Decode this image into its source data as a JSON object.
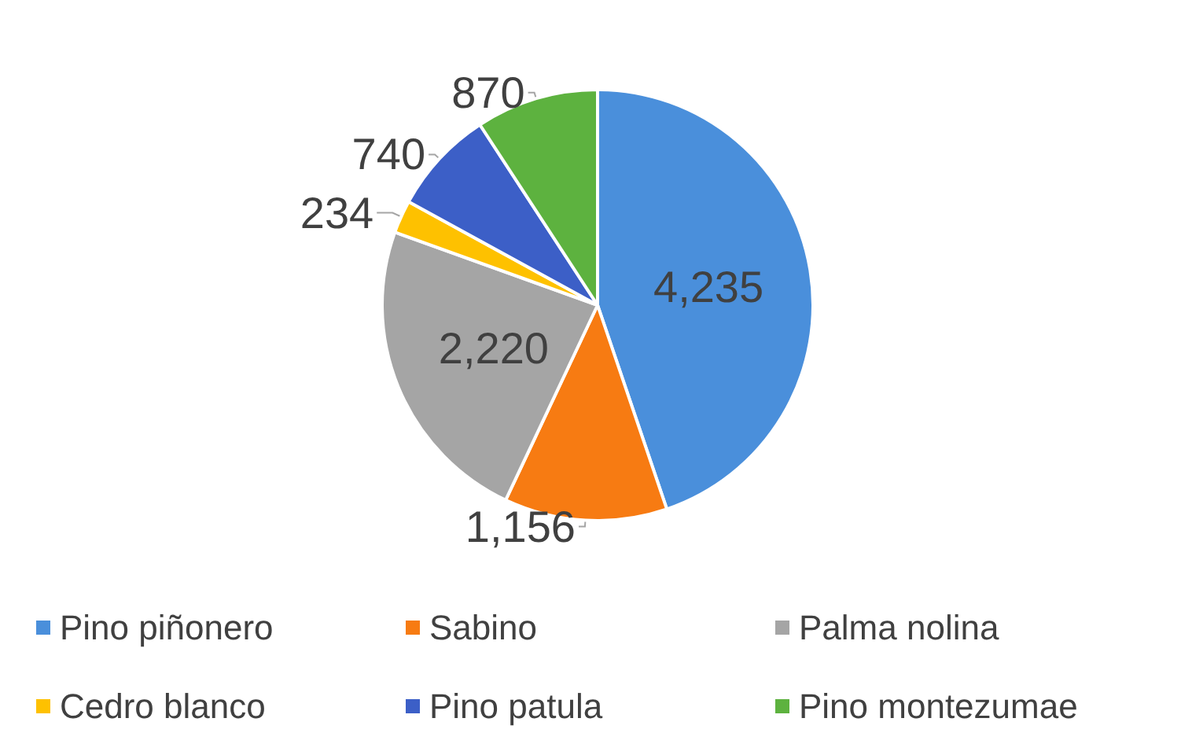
{
  "chart_data": {
    "type": "pie",
    "categories": [
      "Pino piñonero",
      "Sabino",
      "Palma nolina",
      "Cedro blanco",
      "Pino patula",
      "Pino montezumae"
    ],
    "values": [
      4235,
      1156,
      2220,
      234,
      740,
      870
    ],
    "value_labels": [
      "4,235",
      "1,156",
      "2,220",
      "234",
      "740",
      "870"
    ],
    "colors": [
      "#4a8fdb",
      "#f77b12",
      "#a5a5a5",
      "#fec100",
      "#3c5fc7",
      "#5db23f"
    ],
    "legend": "bottom"
  }
}
